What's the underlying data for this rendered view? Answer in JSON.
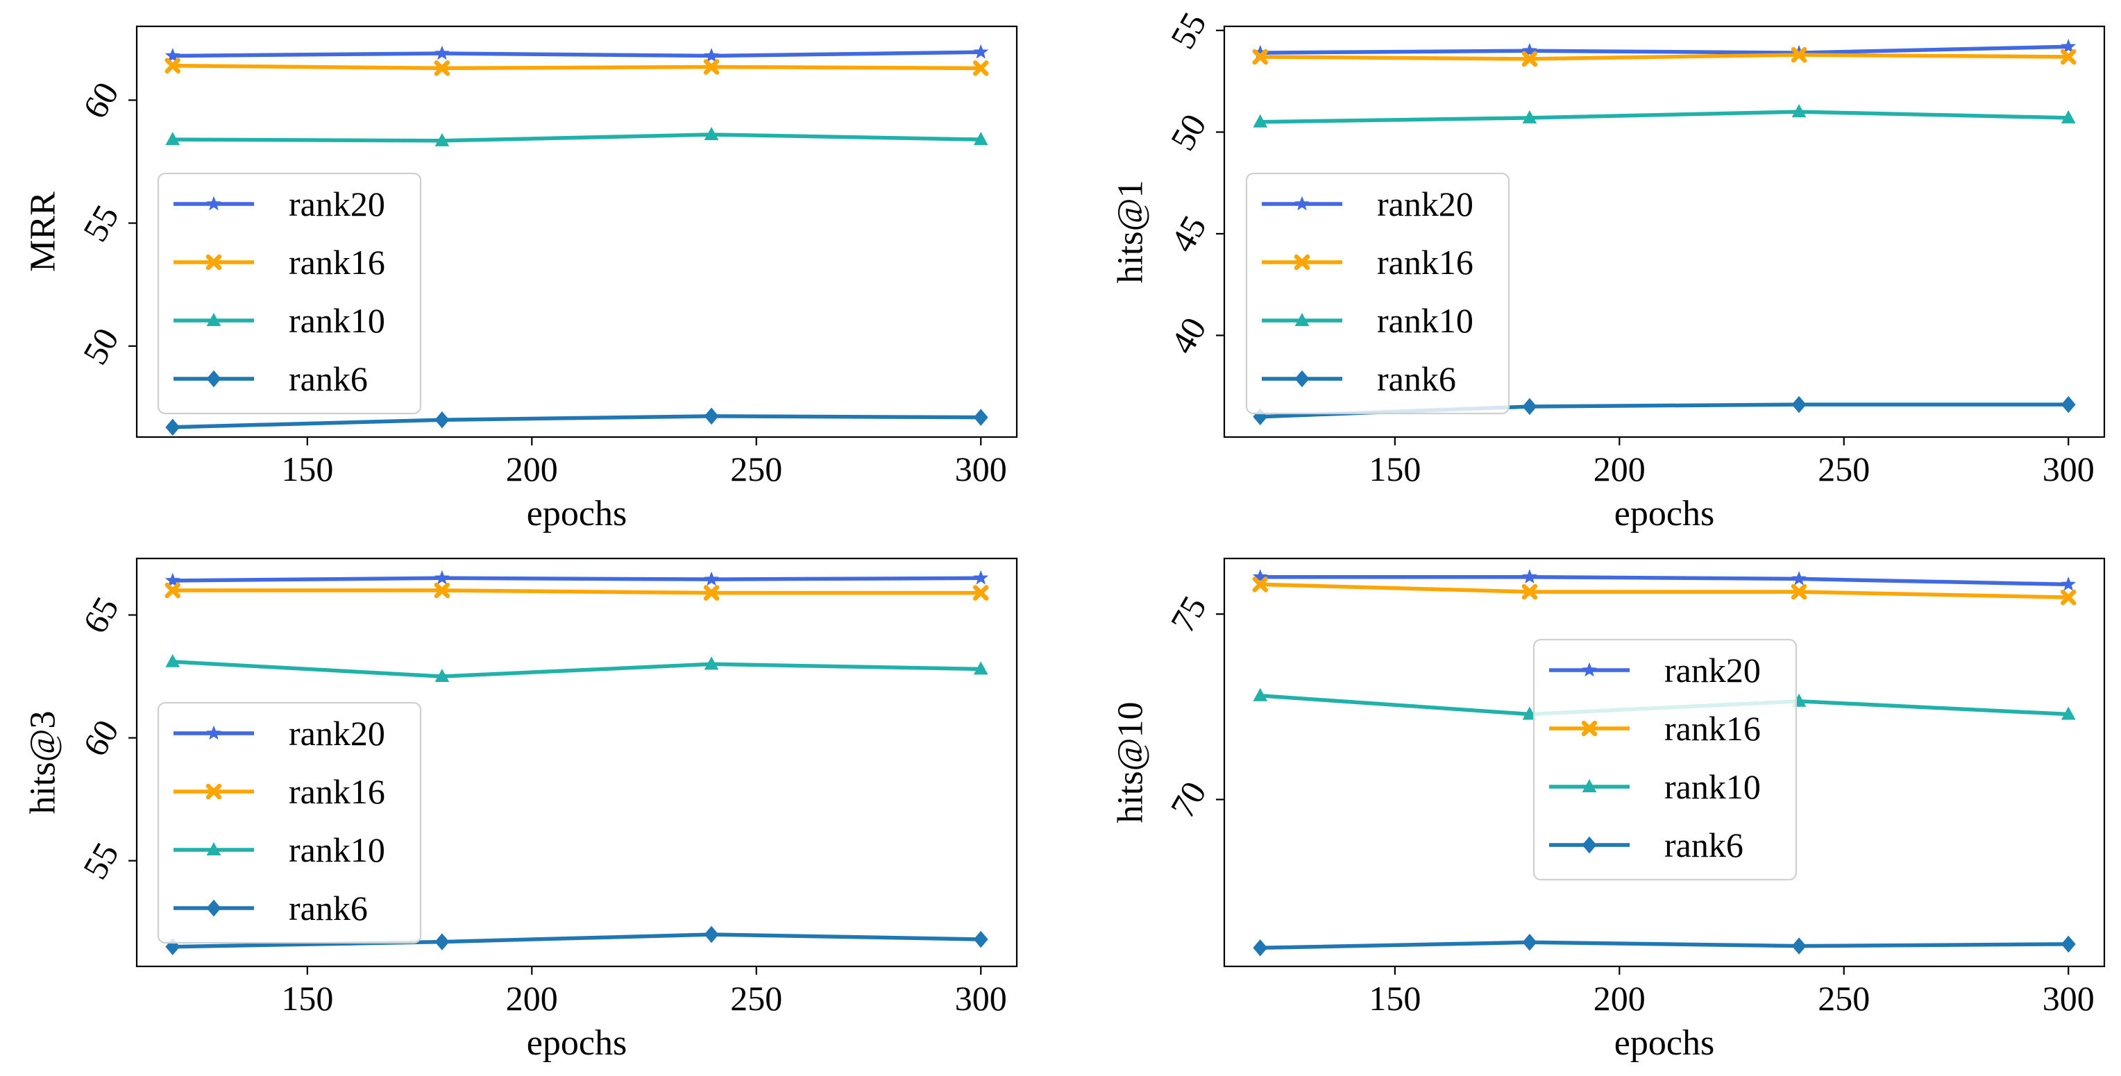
{
  "chart_data": [
    {
      "type": "line",
      "xlabel": "epochs",
      "ylabel": "MRR",
      "x": [
        120,
        180,
        240,
        300
      ],
      "xlim": [
        112,
        308
      ],
      "ylim": [
        46.3,
        63
      ],
      "xticks": [
        150,
        200,
        250,
        300
      ],
      "yticks": [
        50,
        55,
        60
      ],
      "legend_loc": "center-left",
      "series": [
        {
          "name": "rank20",
          "color": "#4169E1",
          "marker": "star",
          "values": [
            61.8,
            61.9,
            61.8,
            61.95
          ]
        },
        {
          "name": "rank16",
          "color": "#FFA500",
          "marker": "x",
          "values": [
            61.4,
            61.3,
            61.35,
            61.3
          ]
        },
        {
          "name": "rank10",
          "color": "#20B2AA",
          "marker": "triangle",
          "values": [
            58.4,
            58.35,
            58.6,
            58.4
          ]
        },
        {
          "name": "rank6",
          "color": "#1F77B4",
          "marker": "diamond",
          "values": [
            46.7,
            47.0,
            47.15,
            47.1
          ]
        }
      ]
    },
    {
      "type": "line",
      "xlabel": "epochs",
      "ylabel": "hits@1",
      "x": [
        120,
        180,
        240,
        300
      ],
      "xlim": [
        112,
        308
      ],
      "ylim": [
        35.0,
        55.2
      ],
      "xticks": [
        150,
        200,
        250,
        300
      ],
      "yticks": [
        40,
        45,
        50,
        55
      ],
      "legend_loc": "center-left",
      "series": [
        {
          "name": "rank20",
          "color": "#4169E1",
          "marker": "star",
          "values": [
            53.9,
            54.0,
            53.9,
            54.2
          ]
        },
        {
          "name": "rank16",
          "color": "#FFA500",
          "marker": "x",
          "values": [
            53.7,
            53.6,
            53.8,
            53.7
          ]
        },
        {
          "name": "rank10",
          "color": "#20B2AA",
          "marker": "triangle",
          "values": [
            50.5,
            50.7,
            51.0,
            50.7
          ]
        },
        {
          "name": "rank6",
          "color": "#1F77B4",
          "marker": "diamond",
          "values": [
            36.0,
            36.5,
            36.6,
            36.6
          ]
        }
      ]
    },
    {
      "type": "line",
      "xlabel": "epochs",
      "ylabel": "hits@3",
      "x": [
        120,
        180,
        240,
        300
      ],
      "xlim": [
        112,
        308
      ],
      "ylim": [
        50.7,
        67.3
      ],
      "xticks": [
        150,
        200,
        250,
        300
      ],
      "yticks": [
        55,
        60,
        65
      ],
      "legend_loc": "center-left",
      "series": [
        {
          "name": "rank20",
          "color": "#4169E1",
          "marker": "star",
          "values": [
            66.4,
            66.5,
            66.45,
            66.5
          ]
        },
        {
          "name": "rank16",
          "color": "#FFA500",
          "marker": "x",
          "values": [
            66.0,
            66.0,
            65.9,
            65.9
          ]
        },
        {
          "name": "rank10",
          "color": "#20B2AA",
          "marker": "triangle",
          "values": [
            63.1,
            62.5,
            63.0,
            62.8
          ]
        },
        {
          "name": "rank6",
          "color": "#1F77B4",
          "marker": "diamond",
          "values": [
            51.5,
            51.7,
            52.0,
            51.8
          ]
        }
      ]
    },
    {
      "type": "line",
      "xlabel": "epochs",
      "ylabel": "hits@10",
      "x": [
        120,
        180,
        240,
        300
      ],
      "xlim": [
        112,
        308
      ],
      "ylim": [
        65.5,
        76.5
      ],
      "xticks": [
        150,
        200,
        250,
        300
      ],
      "yticks": [
        70,
        75
      ],
      "legend_loc": "center",
      "series": [
        {
          "name": "rank20",
          "color": "#4169E1",
          "marker": "star",
          "values": [
            76.0,
            76.0,
            75.95,
            75.8
          ]
        },
        {
          "name": "rank16",
          "color": "#FFA500",
          "marker": "x",
          "values": [
            75.8,
            75.6,
            75.6,
            75.45
          ]
        },
        {
          "name": "rank10",
          "color": "#20B2AA",
          "marker": "triangle",
          "values": [
            72.8,
            72.3,
            72.65,
            72.3
          ]
        },
        {
          "name": "rank6",
          "color": "#1F77B4",
          "marker": "diamond",
          "values": [
            66.0,
            66.15,
            66.05,
            66.1
          ]
        }
      ]
    }
  ]
}
